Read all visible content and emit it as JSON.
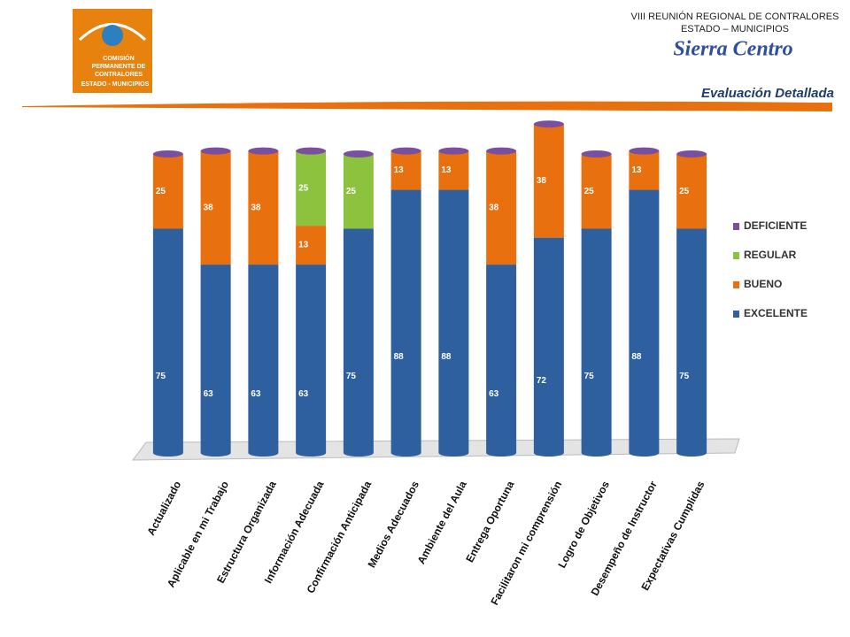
{
  "header": {
    "logo_text": [
      "COMISIÓN",
      "PERMANENTE DE",
      "CONTRALORES",
      "ESTADO - MUNICIPIOS"
    ],
    "event_line1": "VIII REUNIÓN REGIONAL DE CONTRALORES",
    "event_line2": "ESTADO – MUNICIPIOS",
    "event_name": "Sierra Centro",
    "section_title": "Evaluación Detallada"
  },
  "chart_data": {
    "type": "stacked_bar",
    "categories": [
      "Actualizado",
      "Aplicable en mi Trabajo",
      "Estructura Organizada",
      "Información Adecuada",
      "Confirmación Anticipada",
      "Medios Adecuados",
      "Ambiente del Aula",
      "Entrega Oportuna",
      "Facilitaron mi comprensión",
      "Logro de Objetivos",
      "Desempeño de Instructor",
      "Expectativas Cumplidas"
    ],
    "series": [
      {
        "name": "EXCELENTE",
        "color": "#2e5f9e",
        "values": [
          75,
          63,
          63,
          63,
          75,
          88,
          88,
          63,
          72,
          75,
          88,
          75
        ]
      },
      {
        "name": "BUENO",
        "color": "#e8700f",
        "values": [
          25,
          38,
          38,
          13,
          null,
          13,
          13,
          38,
          38,
          25,
          13,
          25
        ]
      },
      {
        "name": "REGULAR",
        "color": "#8dc23f",
        "values": [
          null,
          null,
          null,
          25,
          25,
          null,
          null,
          null,
          null,
          null,
          null,
          null
        ]
      },
      {
        "name": "DEFICIENTE",
        "color": "#7a4fa0",
        "values": [
          null,
          null,
          null,
          null,
          null,
          null,
          null,
          null,
          null,
          null,
          null,
          null
        ]
      }
    ],
    "ylim": [
      0,
      100
    ],
    "legend": "right"
  }
}
